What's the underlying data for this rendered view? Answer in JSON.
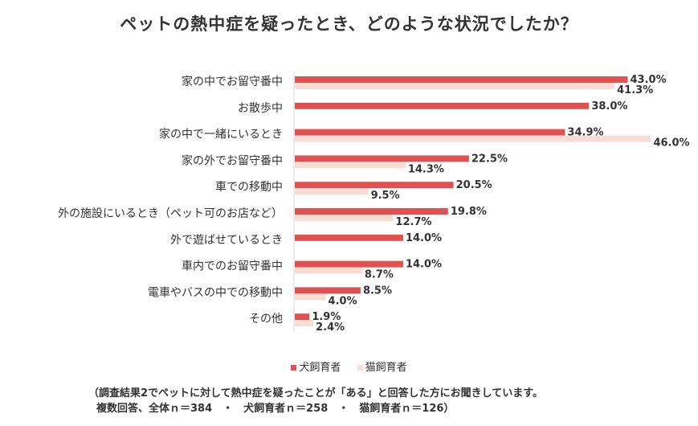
{
  "chart_data": {
    "type": "bar",
    "orientation": "horizontal",
    "title": "ペットの熱中症を疑ったとき、どのような状況でしたか？",
    "categories": [
      "家の中でお留守番中",
      "お散歩中",
      "家の中で一緒にいるとき",
      "家の外でお留守番中",
      "車での移動中",
      "外の施設にいるとき（ペット可のお店など）",
      "外で遊ばせているとき",
      "車内でのお留守番中",
      "電車やバスの中での移動中",
      "その他"
    ],
    "series": [
      {
        "name": "犬飼育者",
        "color": "#e05252",
        "values": [
          43.0,
          38.0,
          34.9,
          22.5,
          20.5,
          19.8,
          14.0,
          14.0,
          8.5,
          1.9
        ],
        "labels": [
          "43.0%",
          "38.0%",
          "34.9%",
          "22.5%",
          "20.5%",
          "19.8%",
          "14.0%",
          "14.0%",
          "8.5%",
          "1.9%"
        ]
      },
      {
        "name": "猫飼育者",
        "color": "#f8dcd6",
        "values": [
          41.3,
          null,
          46.0,
          14.3,
          9.5,
          12.7,
          null,
          8.7,
          4.0,
          2.4
        ],
        "labels": [
          "41.3%",
          "",
          "46.0%",
          "14.3%",
          "9.5%",
          "12.7%",
          "",
          "8.7%",
          "4.0%",
          "2.4%"
        ]
      }
    ],
    "xlim": [
      0,
      50
    ],
    "unit": "%",
    "grid": false,
    "legend_position": "bottom"
  },
  "footnote": {
    "line1": "（調査結果2でペットに対して熱中症を疑ったことが「ある」と回答した方にお聞きしています。",
    "line2": "複数回答、全体ｎ＝384　・　犬飼育者ｎ＝258　・　猫飼育者ｎ＝126）"
  }
}
